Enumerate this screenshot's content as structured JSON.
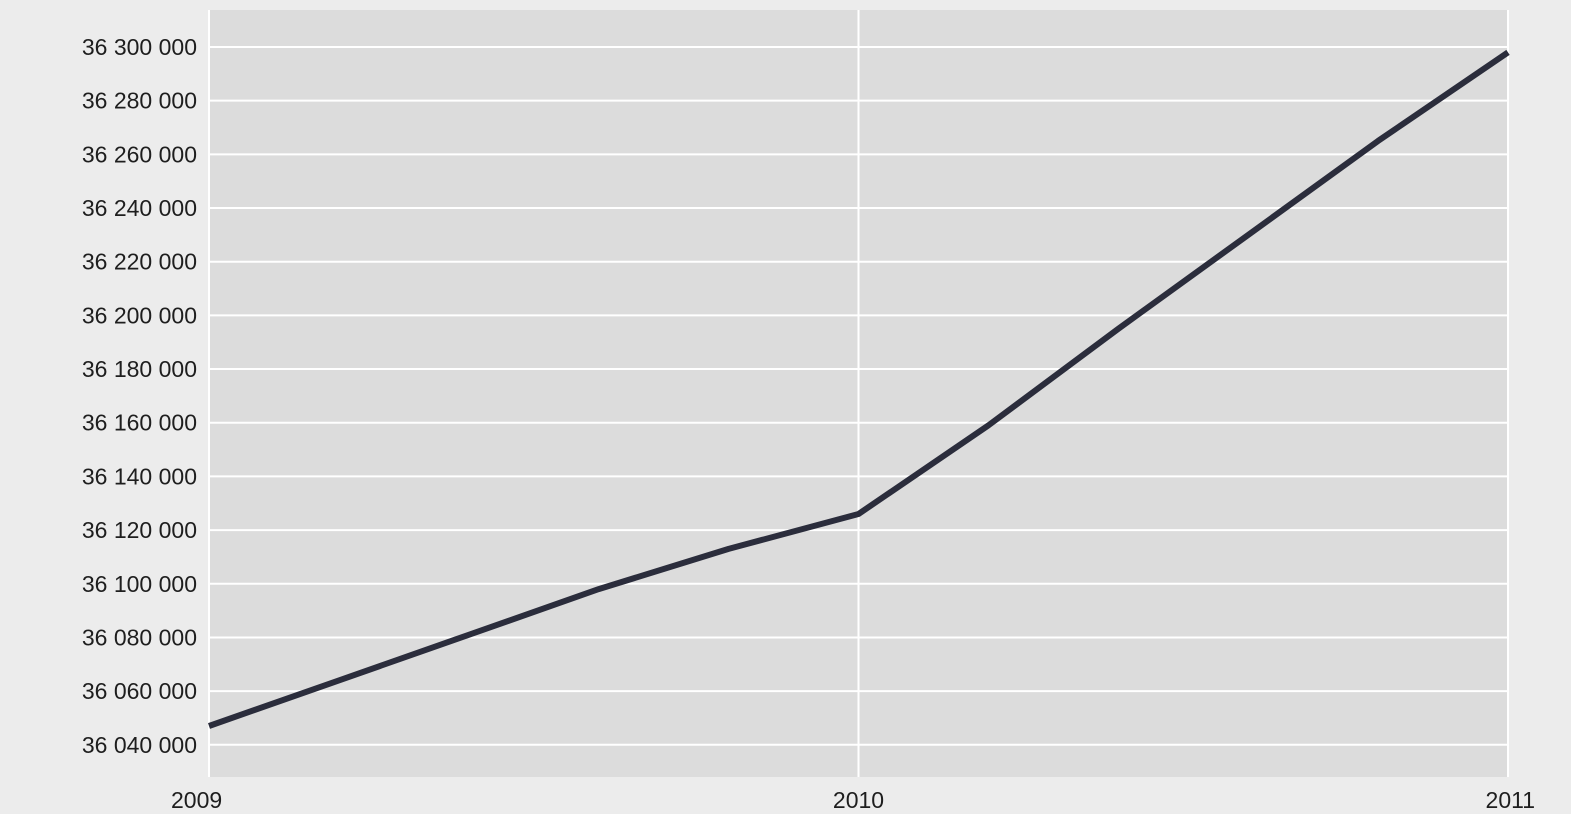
{
  "chart_data": {
    "type": "line",
    "title": "",
    "xlabel": "",
    "ylabel": "",
    "x": [
      2009,
      2009.2,
      2009.4,
      2009.6,
      2009.8,
      2010,
      2010.2,
      2010.4,
      2010.6,
      2010.8,
      2011
    ],
    "series": [
      {
        "values": [
          36047000,
          36064000,
          36081000,
          36098000,
          36113000,
          36126000,
          36159000,
          36195000,
          36230000,
          36265000,
          36298000
        ]
      }
    ],
    "x_ticks": [
      "2009",
      "2010",
      "2011"
    ],
    "y_ticks": [
      "36 040 000",
      "36 060 000",
      "36 080 000",
      "36 100 000",
      "36 120 000",
      "36 140 000",
      "36 160 000",
      "36 180 000",
      "36 200 000",
      "36 220 000",
      "36 240 000",
      "36 260 000",
      "36 280 000",
      "36 300 000"
    ],
    "x_tick_values": [
      2009,
      2010,
      2011
    ],
    "y_tick_values": [
      36040000,
      36060000,
      36080000,
      36100000,
      36120000,
      36140000,
      36160000,
      36180000,
      36200000,
      36220000,
      36240000,
      36260000,
      36280000,
      36300000
    ],
    "xlim": [
      2009,
      2011
    ],
    "ylim": [
      36028000,
      36300000
    ],
    "grid": true,
    "legend": "none",
    "colors": {
      "plot_background": "#dcdcdc",
      "page_background": "#ececec",
      "grid": "#ffffff",
      "line": "#2b2d3c",
      "text": "#1e1e1e"
    }
  }
}
